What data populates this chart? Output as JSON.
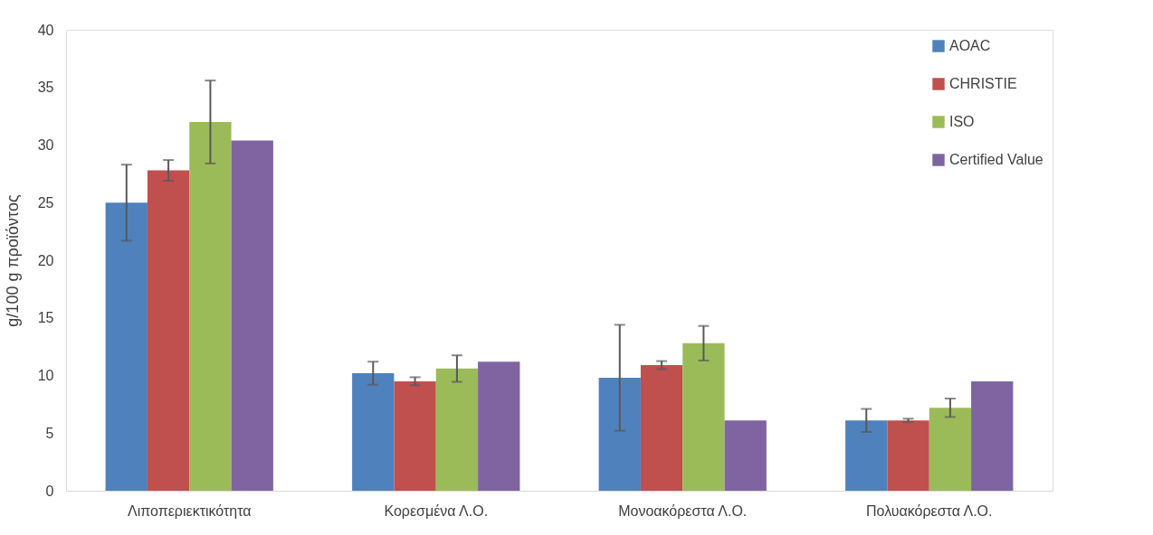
{
  "chart_data": {
    "type": "bar",
    "ylabel": "g/100 g προϊόντος",
    "categories": [
      "Λιποπεριεκτικότητα",
      "Κορεσμένα Λ.Ο.",
      "Μονοακόρεστα Λ.Ο.",
      "Πολυακόρεστα Λ.Ο."
    ],
    "series": [
      {
        "name": "AOAC",
        "color": "#4f81bd",
        "values": [
          25.0,
          10.2,
          9.8,
          6.1
        ],
        "errors": [
          3.3,
          1.0,
          4.6,
          1.0
        ]
      },
      {
        "name": "CHRISTIE",
        "color": "#c0504d",
        "values": [
          27.8,
          9.5,
          10.9,
          6.1
        ],
        "errors": [
          0.9,
          0.35,
          0.35,
          0.15
        ]
      },
      {
        "name": "ISO",
        "color": "#9bbb59",
        "values": [
          32.0,
          10.6,
          12.8,
          7.2
        ],
        "errors": [
          3.6,
          1.15,
          1.5,
          0.8
        ]
      },
      {
        "name": "Certified Value",
        "color": "#8064a2",
        "values": [
          30.4,
          11.2,
          6.1,
          9.5
        ]
      }
    ],
    "ylim": [
      0,
      40
    ],
    "yticks": [
      0,
      5,
      10,
      15,
      20,
      25,
      30,
      35,
      40
    ],
    "grid": false,
    "legend": "top right"
  }
}
